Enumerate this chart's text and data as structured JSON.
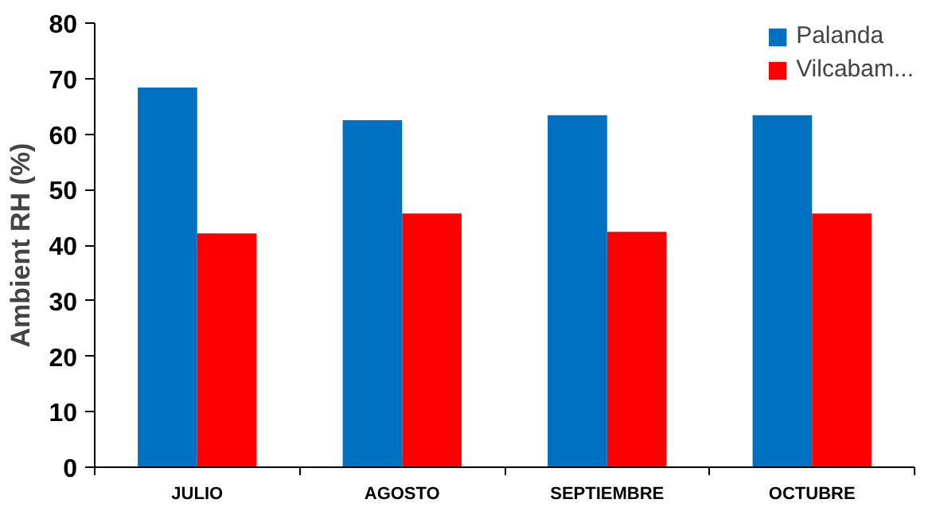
{
  "chart_data": {
    "type": "bar",
    "ylabel": "Ambient RH (%)",
    "categories": [
      "JULIO",
      "AGOSTO",
      "SEPTIEMBRE",
      "OCTUBRE"
    ],
    "series": [
      {
        "name": "Palanda",
        "color": "#0070c0",
        "values": [
          68.4,
          62.5,
          63.4,
          63.4
        ]
      },
      {
        "name": "Vilcabam...",
        "color": "#ff0000",
        "values": [
          42.1,
          45.7,
          42.4,
          45.7
        ]
      }
    ],
    "ylim": [
      0,
      80
    ],
    "yticks": [
      0,
      10,
      20,
      30,
      40,
      50,
      60,
      70,
      80
    ],
    "legend": "top right"
  }
}
